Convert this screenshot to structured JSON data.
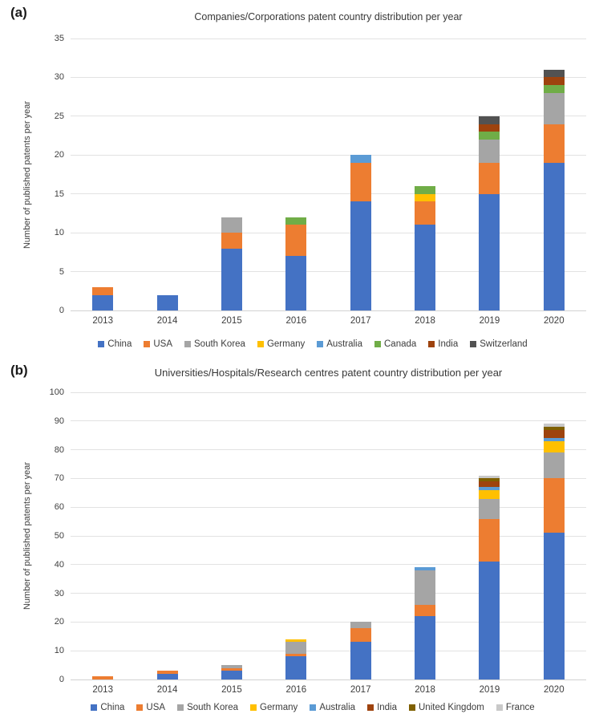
{
  "figure": {
    "background": "#ffffff"
  },
  "chart_data": [
    {
      "panel_label": "(a)",
      "type": "bar",
      "stacked": true,
      "title": "Companies/Corporations patent country distribution per year",
      "ylabel": "Number of published patents per year",
      "xlabel": "",
      "categories": [
        "2013",
        "2014",
        "2015",
        "2016",
        "2017",
        "2018",
        "2019",
        "2020"
      ],
      "ylim": [
        0,
        35
      ],
      "yticks": [
        0,
        5,
        10,
        15,
        20,
        25,
        30,
        35
      ],
      "grid": true,
      "legend_position": "bottom",
      "series": [
        {
          "name": "China",
          "color": "#4472C4",
          "values": [
            2,
            2,
            8,
            7,
            14,
            11,
            15,
            19
          ]
        },
        {
          "name": "USA",
          "color": "#ED7D31",
          "values": [
            1,
            0,
            2,
            4,
            5,
            3,
            4,
            5
          ]
        },
        {
          "name": "South Korea",
          "color": "#A5A5A5",
          "values": [
            0,
            0,
            2,
            0,
            0,
            0,
            3,
            4
          ]
        },
        {
          "name": "Germany",
          "color": "#FFC000",
          "values": [
            0,
            0,
            0,
            0,
            0,
            1,
            0,
            0
          ]
        },
        {
          "name": "Australia",
          "color": "#5B9BD5",
          "values": [
            0,
            0,
            0,
            0,
            1,
            0,
            0,
            0
          ]
        },
        {
          "name": "Canada",
          "color": "#70AD47",
          "values": [
            0,
            0,
            0,
            1,
            0,
            1,
            1,
            1
          ]
        },
        {
          "name": "India",
          "color": "#9E430E",
          "values": [
            0,
            0,
            0,
            0,
            0,
            0,
            1,
            1
          ]
        },
        {
          "name": "Switzerland",
          "color": "#525252",
          "values": [
            0,
            0,
            0,
            0,
            0,
            0,
            1,
            1
          ]
        }
      ]
    },
    {
      "panel_label": "(b)",
      "type": "bar",
      "stacked": true,
      "title": "Universities/Hospitals/Research centres patent country distribution per year",
      "ylabel": "Number of published patents per year",
      "xlabel": "",
      "categories": [
        "2013",
        "2014",
        "2015",
        "2016",
        "2017",
        "2018",
        "2019",
        "2020"
      ],
      "ylim": [
        0,
        100
      ],
      "yticks": [
        0,
        10,
        20,
        30,
        40,
        50,
        60,
        70,
        80,
        90,
        100
      ],
      "grid": true,
      "legend_position": "bottom",
      "series": [
        {
          "name": "China",
          "color": "#4472C4",
          "values": [
            0,
            2,
            3,
            8,
            13,
            22,
            41,
            51
          ]
        },
        {
          "name": "USA",
          "color": "#ED7D31",
          "values": [
            1,
            1,
            1,
            1,
            5,
            4,
            15,
            19
          ]
        },
        {
          "name": "South Korea",
          "color": "#A5A5A5",
          "values": [
            0,
            0,
            1,
            4,
            2,
            12,
            7,
            9
          ]
        },
        {
          "name": "Germany",
          "color": "#FFC000",
          "values": [
            0,
            0,
            0,
            1,
            0,
            0,
            3,
            4
          ]
        },
        {
          "name": "Australia",
          "color": "#5B9BD5",
          "values": [
            0,
            0,
            0,
            0,
            0,
            1,
            1,
            1
          ]
        },
        {
          "name": "India",
          "color": "#9E430E",
          "values": [
            0,
            0,
            0,
            0,
            0,
            0,
            2,
            3
          ]
        },
        {
          "name": "United Kingdom",
          "color": "#7F6000",
          "values": [
            0,
            0,
            0,
            0,
            0,
            0,
            1,
            1
          ]
        },
        {
          "name": "France",
          "color": "#C9C9C9",
          "values": [
            0,
            0,
            0,
            0,
            0,
            0,
            1,
            1
          ]
        }
      ]
    }
  ]
}
